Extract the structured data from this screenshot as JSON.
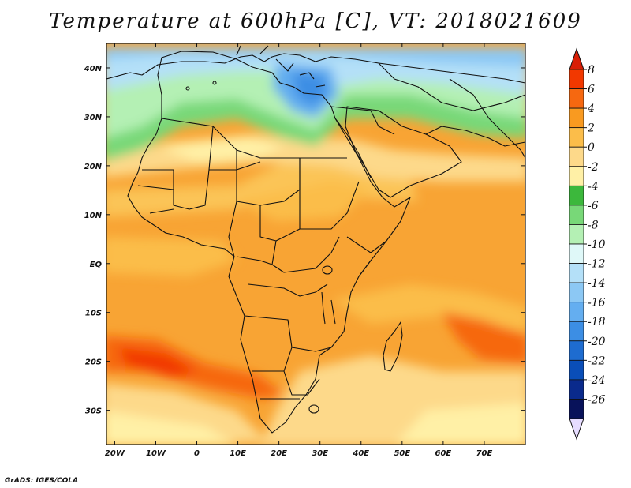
{
  "title": "Temperature at 600hPa [C], VT: 2018021609",
  "credit": "GrADS: IGES/COLA",
  "map": {
    "lon_range": [
      -22,
      80
    ],
    "lat_range": [
      -37,
      45
    ],
    "lat_labels": [
      "40N",
      "30N",
      "20N",
      "10N",
      "EQ",
      "10S",
      "20S",
      "30S"
    ],
    "lat_values": [
      40,
      30,
      20,
      10,
      0,
      -10,
      -20,
      -30
    ],
    "lon_labels": [
      "20W",
      "10W",
      "0",
      "10E",
      "20E",
      "30E",
      "40E",
      "50E",
      "60E",
      "70E"
    ],
    "lon_values": [
      -20,
      -10,
      0,
      10,
      20,
      30,
      40,
      50,
      60,
      70
    ]
  },
  "colorbar": {
    "labels": [
      "8",
      "6",
      "4",
      "2",
      "0",
      "-2",
      "-4",
      "-6",
      "-8",
      "-10",
      "-12",
      "-14",
      "-16",
      "-18",
      "-20",
      "-22",
      "-24",
      "-26"
    ],
    "colors": [
      "#f23800",
      "#f66810",
      "#f99a20",
      "#fbbd4a",
      "#fdd98a",
      "#fff0a6",
      "#3cb83c",
      "#78d878",
      "#b4f0b4",
      "#dff8f8",
      "#b4e0f8",
      "#8cc8f4",
      "#64aef0",
      "#3c8ee4",
      "#1e6cd0",
      "#0a4eb8",
      "#0a2a8c",
      "#08125a"
    ],
    "top_color": "#d81e05",
    "bottom_color": "#e6dcff"
  }
}
